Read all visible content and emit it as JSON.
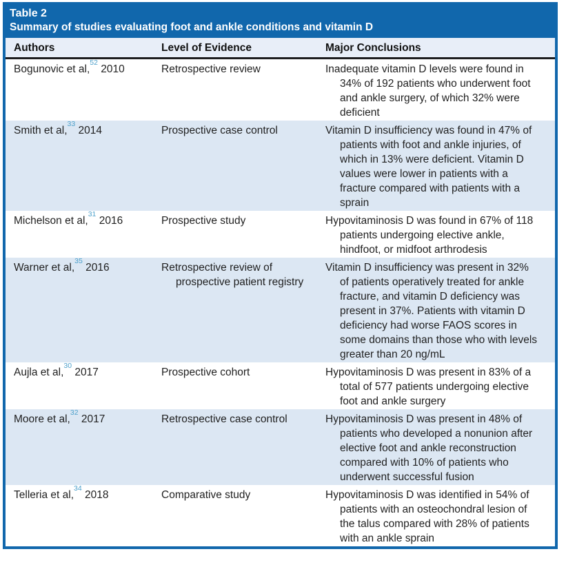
{
  "table": {
    "label": "Table 2",
    "title": "Summary of studies evaluating foot and ankle conditions and vitamin D",
    "columns": [
      "Authors",
      "Level of Evidence",
      "Major Conclusions"
    ],
    "rows": [
      {
        "author": "Bogunovic et al,",
        "ref": "52",
        "year": "2010",
        "evidence": "Retrospective review",
        "conclusion": "Inadequate vitamin D levels were found in 34% of 192 patients who underwent foot and ankle surgery, of which 32% were deficient"
      },
      {
        "author": "Smith et al,",
        "ref": "33",
        "year": "2014",
        "evidence": "Prospective case control",
        "conclusion": "Vitamin D insufficiency was found in 47% of patients with foot and ankle injuries, of which in 13% were deficient. Vitamin D values were lower in patients with a fracture compared with patients with a sprain"
      },
      {
        "author": "Michelson et al,",
        "ref": "31",
        "year": "2016",
        "evidence": "Prospective study",
        "conclusion": "Hypovitaminosis D was found in 67% of 118 patients undergoing elective ankle, hindfoot, or midfoot arthrodesis"
      },
      {
        "author": "Warner et al,",
        "ref": "35",
        "year": "2016",
        "evidence": "Retrospective review of prospective patient registry",
        "conclusion": "Vitamin D insufficiency was present in 32% of patients operatively treated for ankle fracture, and vitamin D deficiency was present in 37%. Patients with vitamin D deficiency had worse FAOS scores in some domains than those who with levels greater than 20 ng/mL"
      },
      {
        "author": "Aujla et al,",
        "ref": "30",
        "year": "2017",
        "evidence": "Prospective cohort",
        "conclusion": "Hypovitaminosis D was present in 83% of a total of 577 patients undergoing elective foot and ankle surgery"
      },
      {
        "author": "Moore et al,",
        "ref": "32",
        "year": "2017",
        "evidence": "Retrospective case control",
        "conclusion": "Hypovitaminosis D was present in 48% of patients who developed a nonunion after elective foot and ankle reconstruction compared with 10% of patients who underwent successful fusion"
      },
      {
        "author": "Telleria et al,",
        "ref": "34",
        "year": "2018",
        "evidence": "Comparative study",
        "conclusion": "Hypovitaminosis D was identified in 54% of patients with an osteochondral lesion of the talus compared with 28% of patients with an ankle sprain"
      }
    ]
  },
  "colors": {
    "header_bar_blue": "#1167ac",
    "table_border_blue": "#1167ac",
    "column_header_bg": "#e8eef8",
    "alt_row_bg": "#dce7f3",
    "reference_link_blue": "#4da0cb",
    "header_rule_black": "#1d1d1f",
    "body_text": "#1f1f1f",
    "header_text": "#ffffff"
  }
}
